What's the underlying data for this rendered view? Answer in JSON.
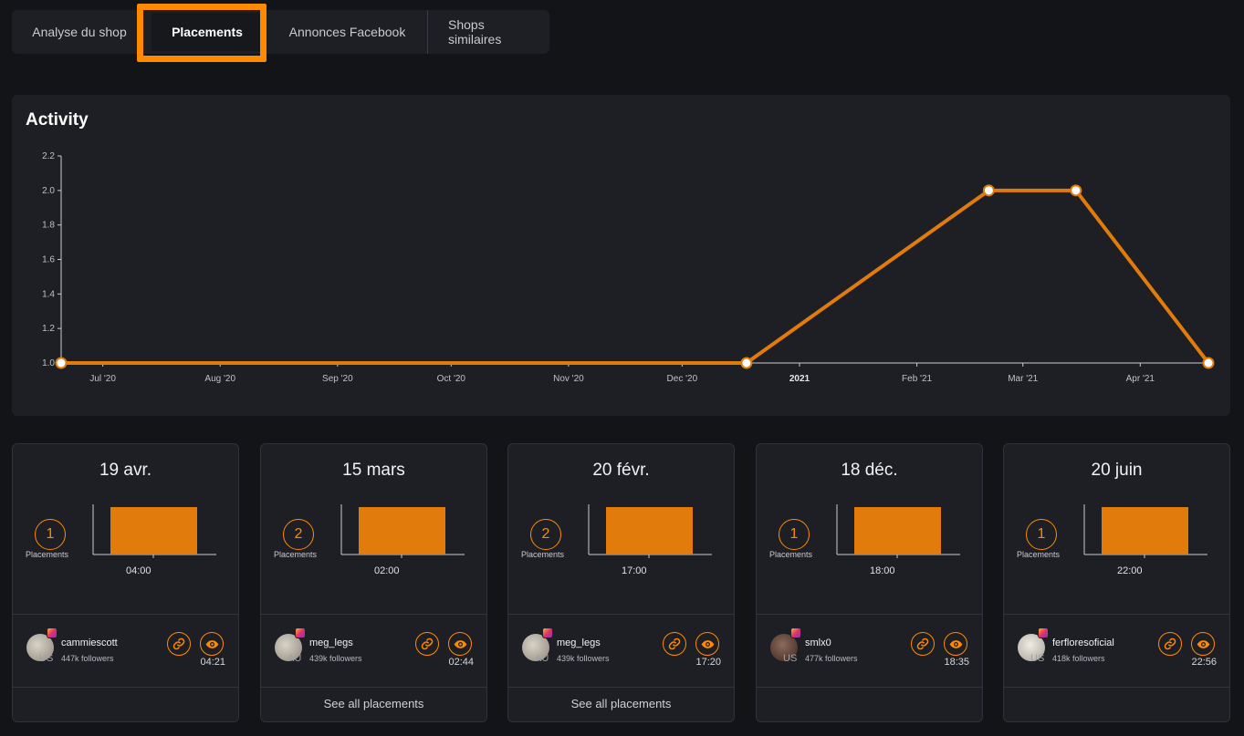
{
  "tabs": [
    {
      "label": "Analyse du shop"
    },
    {
      "label": "Placements"
    },
    {
      "label": "Annonces Facebook"
    },
    {
      "label": "Shops similaires"
    }
  ],
  "activity": {
    "title": "Activity"
  },
  "chart_data": {
    "type": "line",
    "title": "Activity",
    "xlabel": "",
    "ylabel": "",
    "ylim": [
      1.0,
      2.2
    ],
    "y_ticks": [
      "1.0",
      "1.2",
      "1.4",
      "1.6",
      "1.8",
      "2.0",
      "2.2"
    ],
    "x_ticks": [
      "Jul '20",
      "Aug '20",
      "Sep '20",
      "Oct '20",
      "Nov '20",
      "Dec '20",
      "2021",
      "Feb '21",
      "Mar '21",
      "Apr '21"
    ],
    "x_tick_dates": [
      "2020-07-01",
      "2020-08-01",
      "2020-09-01",
      "2020-10-01",
      "2020-11-01",
      "2020-12-01",
      "2021-01-01",
      "2021-02-01",
      "2021-03-01",
      "2021-04-01"
    ],
    "x_range": [
      "2020-06-20",
      "2021-04-19"
    ],
    "series": [
      {
        "color": "#e07b0c",
        "points": [
          {
            "x": "2020-06-20",
            "y": 1
          },
          {
            "x": "2020-12-18",
            "y": 1
          },
          {
            "x": "2021-02-20",
            "y": 2
          },
          {
            "x": "2021-03-15",
            "y": 2
          },
          {
            "x": "2021-04-19",
            "y": 1
          }
        ]
      }
    ],
    "grid": false
  },
  "cards": [
    {
      "date": "19 avr.",
      "count": "1",
      "count_label": "Placements",
      "hour": "04:00",
      "username": "cammiescott",
      "followers": "447k followers",
      "country": "US",
      "time": "04:21",
      "see_all": "",
      "avatar_style": "normal"
    },
    {
      "date": "15 mars",
      "count": "2",
      "count_label": "Placements",
      "hour": "02:00",
      "username": "meg_legs",
      "followers": "439k followers",
      "country": "AU",
      "time": "02:44",
      "see_all": "See all placements",
      "avatar_style": "normal"
    },
    {
      "date": "20 févr.",
      "count": "2",
      "count_label": "Placements",
      "hour": "17:00",
      "username": "meg_legs",
      "followers": "439k followers",
      "country": "AU",
      "time": "17:20",
      "see_all": "See all placements",
      "avatar_style": "normal"
    },
    {
      "date": "18 déc.",
      "count": "1",
      "count_label": "Placements",
      "hour": "18:00",
      "username": "smlx0",
      "followers": "477k followers",
      "country": "US",
      "time": "18:35",
      "see_all": "",
      "avatar_style": "dark"
    },
    {
      "date": "20 juin",
      "count": "1",
      "count_label": "Placements",
      "hour": "22:00",
      "username": "ferfloresoficial",
      "followers": "418k followers",
      "country": "US",
      "time": "22:56",
      "see_all": "",
      "avatar_style": "light"
    }
  ],
  "colors": {
    "accent": "#ff8a00",
    "bar": "#e07b0c",
    "background": "#131418",
    "panel": "#1e1f25"
  },
  "icons": {
    "link": "link-icon",
    "view": "eye-icon",
    "instagram": "instagram-icon"
  }
}
